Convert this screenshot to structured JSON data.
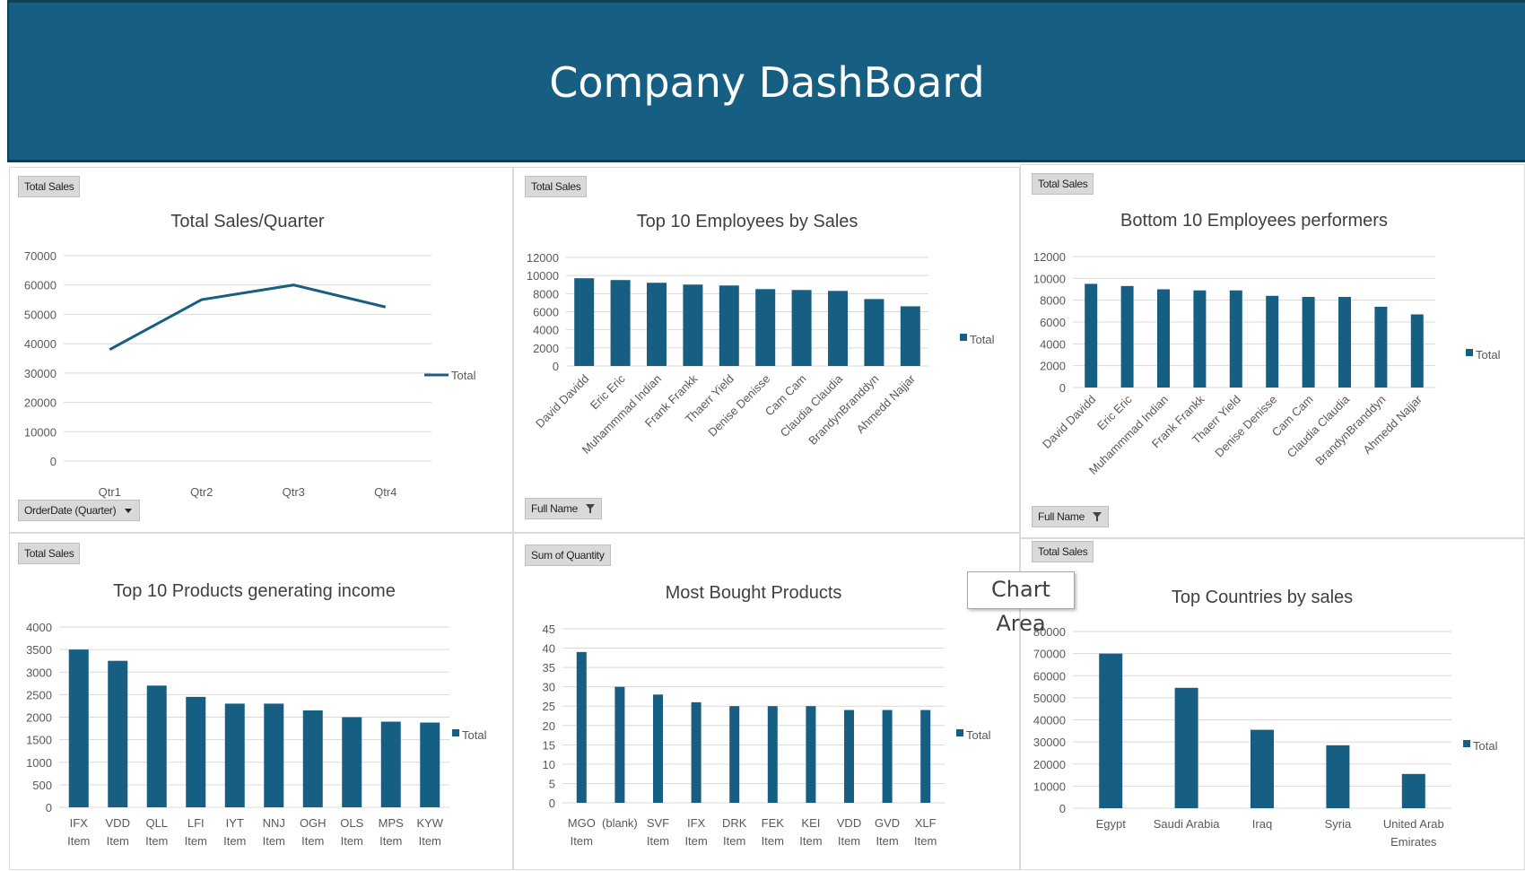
{
  "header": {
    "title": "Company DashBoard"
  },
  "tooltip": {
    "text": "Chart Area"
  },
  "colors": {
    "header": "#175f82",
    "bar": "#175f82",
    "grid": "#d9d9d9",
    "axis_text": "#595959"
  },
  "panels": {
    "p1": {
      "field": "Total Sales",
      "filter": "OrderDate (Quarter)"
    },
    "p2": {
      "field": "Total Sales",
      "filter": "Full Name"
    },
    "p3": {
      "field": "Total Sales",
      "filter": "Full Name"
    },
    "p4": {
      "field": "Total Sales"
    },
    "p5": {
      "field": "Sum of Quantity"
    },
    "p6": {
      "field": "Total Sales"
    }
  },
  "chart_data": [
    {
      "id": "c1",
      "type": "line",
      "title": "Total Sales/Quarter",
      "categories": [
        "Qtr1",
        "Qtr2",
        "Qtr3",
        "Qtr4"
      ],
      "values": [
        38000,
        55000,
        60000,
        52500
      ],
      "ylim": [
        0,
        70000
      ],
      "yticks": [
        0,
        10000,
        20000,
        30000,
        40000,
        50000,
        60000,
        70000
      ],
      "legend": "Total",
      "legend_position": "right"
    },
    {
      "id": "c2",
      "type": "bar",
      "title": "Top 10 Employees by Sales",
      "categories": [
        "David Davidd",
        "Eric Eric",
        "Muhammmad Indian",
        "Frank Frankk",
        "Thaerr Yield",
        "Denise Denisse",
        "Cam Cam",
        "Claudia Claudia",
        "BrandynBranddyn",
        "Ahmedd Najjar"
      ],
      "values": [
        9700,
        9500,
        9200,
        9000,
        8900,
        8500,
        8400,
        8300,
        7400,
        6600
      ],
      "ylim": [
        0,
        12000
      ],
      "yticks": [
        0,
        2000,
        4000,
        6000,
        8000,
        10000,
        12000
      ],
      "legend": "Total",
      "legend_position": "right",
      "rotated_labels": true
    },
    {
      "id": "c3",
      "type": "bar",
      "title": "Bottom 10 Employees performers",
      "categories": [
        "David Davidd",
        "Eric Eric",
        "Muhammmad Indian",
        "Frank Frankk",
        "Thaerr Yield",
        "Denise Denisse",
        "Cam Cam",
        "Claudia Claudia",
        "BrandynBranddyn",
        "Ahmedd Najjar"
      ],
      "values": [
        9500,
        9300,
        9000,
        8900,
        8900,
        8400,
        8300,
        8300,
        7400,
        6700
      ],
      "ylim": [
        0,
        12000
      ],
      "yticks": [
        0,
        2000,
        4000,
        6000,
        8000,
        10000,
        12000
      ],
      "legend": "Total",
      "legend_position": "right",
      "rotated_labels": true
    },
    {
      "id": "c4",
      "type": "bar",
      "title": "Top 10 Products generating income",
      "categories": [
        "IFX|Item",
        "VDD|Item",
        "QLL|Item",
        "LFI|Item",
        "IYT|Item",
        "NNJ|Item",
        "OGH|Item",
        "OLS|Item",
        "MPS|Item",
        "KYW|Item"
      ],
      "values": [
        3500,
        3250,
        2700,
        2450,
        2300,
        2300,
        2150,
        2000,
        1900,
        1880
      ],
      "ylim": [
        0,
        4000
      ],
      "yticks": [
        0,
        500,
        1000,
        1500,
        2000,
        2500,
        3000,
        3500,
        4000
      ],
      "legend": "Total",
      "legend_position": "right"
    },
    {
      "id": "c5",
      "type": "bar",
      "title": "Most Bought Products",
      "categories": [
        "MGO|Item",
        "(blank)",
        "SVF|Item",
        "IFX|Item",
        "DRK|Item",
        "FEK|Item",
        "KEI|Item",
        "VDD|Item",
        "GVD|Item",
        "XLF|Item"
      ],
      "values": [
        39,
        30,
        28,
        26,
        25,
        25,
        25,
        24,
        24,
        24
      ],
      "ylim": [
        0,
        45
      ],
      "yticks": [
        0,
        5,
        10,
        15,
        20,
        25,
        30,
        35,
        40,
        45
      ],
      "legend": "Total",
      "legend_position": "right"
    },
    {
      "id": "c6",
      "type": "bar",
      "title": "Top Countries by sales",
      "categories": [
        "Egypt",
        "Saudi Arabia",
        "Iraq",
        "Syria",
        "United Arab|Emirates"
      ],
      "values": [
        70000,
        54500,
        35500,
        28500,
        15500
      ],
      "ylim": [
        0,
        80000
      ],
      "yticks": [
        0,
        10000,
        20000,
        30000,
        40000,
        50000,
        60000,
        70000,
        80000
      ],
      "legend": "Total",
      "legend_position": "right"
    }
  ]
}
